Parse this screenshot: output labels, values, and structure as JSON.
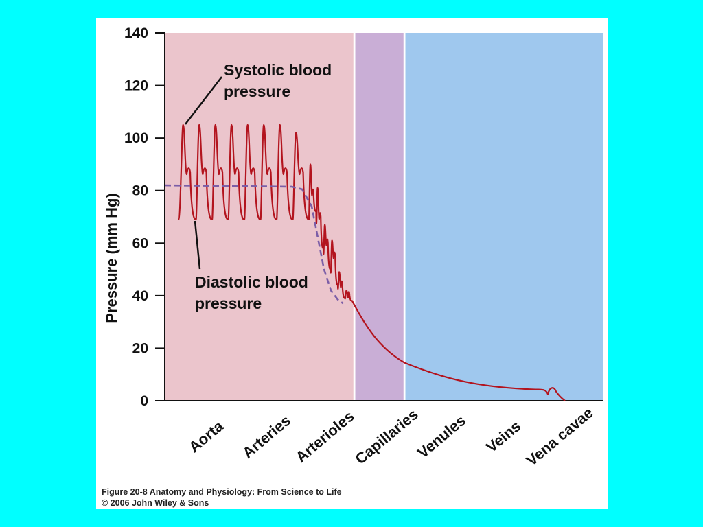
{
  "chart_data": {
    "type": "line",
    "ylabel": "Pressure (mm Hg)",
    "xlabel": "",
    "ylim": [
      0,
      140
    ],
    "yticks": [
      0,
      20,
      40,
      60,
      80,
      100,
      120,
      140
    ],
    "categories": [
      "Aorta",
      "Arteries",
      "Arterioles",
      "Capillaries",
      "Venules",
      "Veins",
      "Vena cavae"
    ],
    "regions": [
      {
        "name": "arterial",
        "categories": [
          "Aorta",
          "Arteries",
          "Arterioles"
        ],
        "color": "#ebc5cc"
      },
      {
        "name": "capillary",
        "categories": [
          "Capillaries"
        ],
        "color": "#c9aed6"
      },
      {
        "name": "venous",
        "categories": [
          "Venules",
          "Veins",
          "Vena cavae"
        ],
        "color": "#9fc8ee"
      }
    ],
    "series": [
      {
        "name": "",
        "description_key": "pulsatile",
        "color": "#b3141e",
        "style": "solid",
        "systolic_peak": 105,
        "diastolic_trough": 69,
        "points_after_arterioles": [
          [
            3.0,
            37
          ],
          [
            3.5,
            22
          ],
          [
            4.0,
            14
          ],
          [
            5.0,
            6
          ],
          [
            6.0,
            4.5
          ],
          [
            6.7,
            4
          ],
          [
            6.9,
            0
          ]
        ]
      },
      {
        "name": "",
        "description_key": "mean",
        "color": "#7b5ea7",
        "style": "dashed",
        "points": [
          [
            0.0,
            82
          ],
          [
            2.6,
            81
          ],
          [
            2.8,
            72
          ],
          [
            2.9,
            58
          ],
          [
            3.0,
            44
          ],
          [
            3.1,
            38
          ]
        ]
      }
    ],
    "annotations": [
      {
        "lines": [
          "Systolic blood",
          "pressure"
        ],
        "points_to": "systolic peak"
      },
      {
        "lines": [
          "Diastolic blood",
          "pressure"
        ],
        "points_to": "diastolic trough"
      }
    ],
    "grid": false
  },
  "caption": {
    "line1": "Figure 20-8  Anatomy and Physiology: From Science to Life",
    "line2": "© 2006 John Wiley & Sons"
  }
}
